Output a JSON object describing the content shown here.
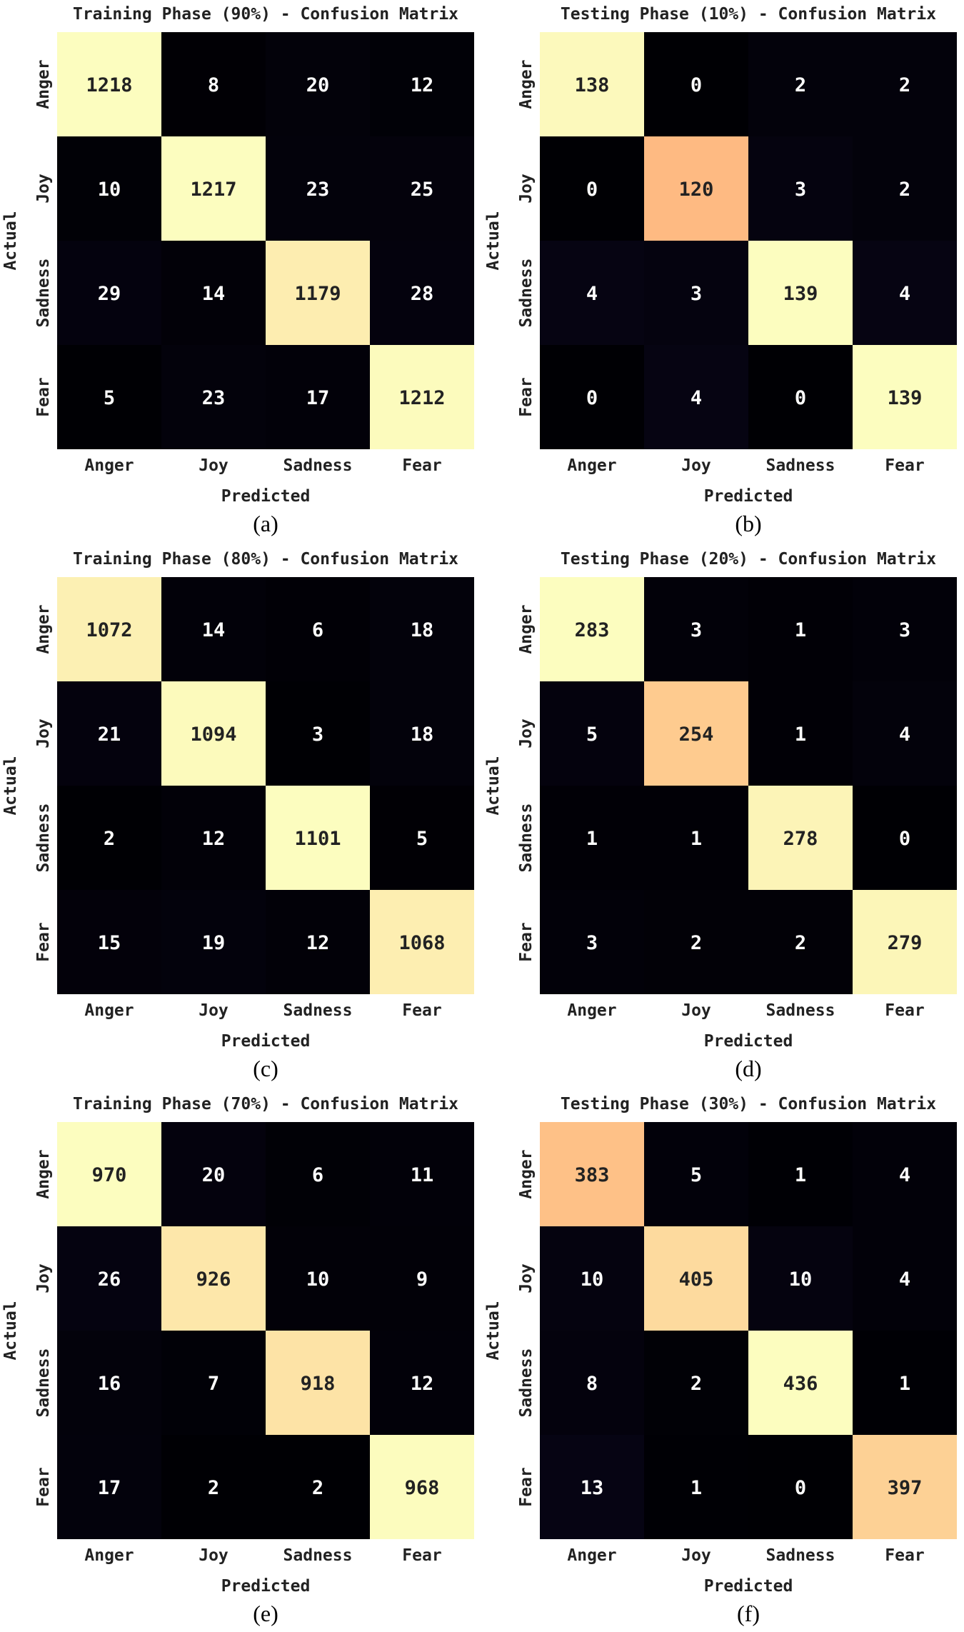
{
  "chart_data": [
    {
      "type": "heatmap",
      "title": "Training Phase (90%) - Confusion Matrix",
      "caption": "(a)",
      "xlabel": "Predicted",
      "ylabel": "Actual",
      "x_categories": [
        "Anger",
        "Joy",
        "Sadness",
        "Fear"
      ],
      "y_categories": [
        "Anger",
        "Joy",
        "Sadness",
        "Fear"
      ],
      "values": [
        [
          1218,
          8,
          20,
          12
        ],
        [
          10,
          1217,
          23,
          25
        ],
        [
          29,
          14,
          1179,
          28
        ],
        [
          5,
          23,
          17,
          1212
        ]
      ],
      "grid": false,
      "colorbar": false
    },
    {
      "type": "heatmap",
      "title": "Testing Phase (10%) - Confusion Matrix",
      "caption": "(b)",
      "xlabel": "Predicted",
      "ylabel": "Actual",
      "x_categories": [
        "Anger",
        "Joy",
        "Sadness",
        "Fear"
      ],
      "y_categories": [
        "Anger",
        "Joy",
        "Sadness",
        "Fear"
      ],
      "values": [
        [
          138,
          0,
          2,
          2
        ],
        [
          0,
          120,
          3,
          2
        ],
        [
          4,
          3,
          139,
          4
        ],
        [
          0,
          4,
          0,
          139
        ]
      ],
      "grid": false,
      "colorbar": false
    },
    {
      "type": "heatmap",
      "title": "Training Phase (80%) - Confusion Matrix",
      "caption": "(c)",
      "xlabel": "Predicted",
      "ylabel": "Actual",
      "x_categories": [
        "Anger",
        "Joy",
        "Sadness",
        "Fear"
      ],
      "y_categories": [
        "Anger",
        "Joy",
        "Sadness",
        "Fear"
      ],
      "values": [
        [
          1072,
          14,
          6,
          18
        ],
        [
          21,
          1094,
          3,
          18
        ],
        [
          2,
          12,
          1101,
          5
        ],
        [
          15,
          19,
          12,
          1068
        ]
      ],
      "grid": false,
      "colorbar": false
    },
    {
      "type": "heatmap",
      "title": "Testing Phase (20%) - Confusion Matrix",
      "caption": "(d)",
      "xlabel": "Predicted",
      "ylabel": "Actual",
      "x_categories": [
        "Anger",
        "Joy",
        "Sadness",
        "Fear"
      ],
      "y_categories": [
        "Anger",
        "Joy",
        "Sadness",
        "Fear"
      ],
      "values": [
        [
          283,
          3,
          1,
          3
        ],
        [
          5,
          254,
          1,
          4
        ],
        [
          1,
          1,
          278,
          0
        ],
        [
          3,
          2,
          2,
          279
        ]
      ],
      "grid": false,
      "colorbar": false
    },
    {
      "type": "heatmap",
      "title": "Training Phase (70%) - Confusion Matrix",
      "caption": "(e)",
      "xlabel": "Predicted",
      "ylabel": "Actual",
      "x_categories": [
        "Anger",
        "Joy",
        "Sadness",
        "Fear"
      ],
      "y_categories": [
        "Anger",
        "Joy",
        "Sadness",
        "Fear"
      ],
      "values": [
        [
          970,
          20,
          6,
          11
        ],
        [
          26,
          926,
          10,
          9
        ],
        [
          16,
          7,
          918,
          12
        ],
        [
          17,
          2,
          2,
          968
        ]
      ],
      "grid": false,
      "colorbar": false
    },
    {
      "type": "heatmap",
      "title": "Testing Phase (30%) - Confusion Matrix",
      "caption": "(f)",
      "xlabel": "Predicted",
      "ylabel": "Actual",
      "x_categories": [
        "Anger",
        "Joy",
        "Sadness",
        "Fear"
      ],
      "y_categories": [
        "Anger",
        "Joy",
        "Sadness",
        "Fear"
      ],
      "values": [
        [
          383,
          5,
          1,
          4
        ],
        [
          10,
          405,
          10,
          4
        ],
        [
          8,
          2,
          436,
          1
        ],
        [
          13,
          1,
          0,
          397
        ]
      ],
      "grid": false,
      "colorbar": false
    }
  ],
  "colors": {
    "scale": "magma",
    "low_cell": "#000004",
    "high_cell": "#fcfdbf",
    "label_on_dark": "#ffffff",
    "label_on_light": "#222222"
  }
}
